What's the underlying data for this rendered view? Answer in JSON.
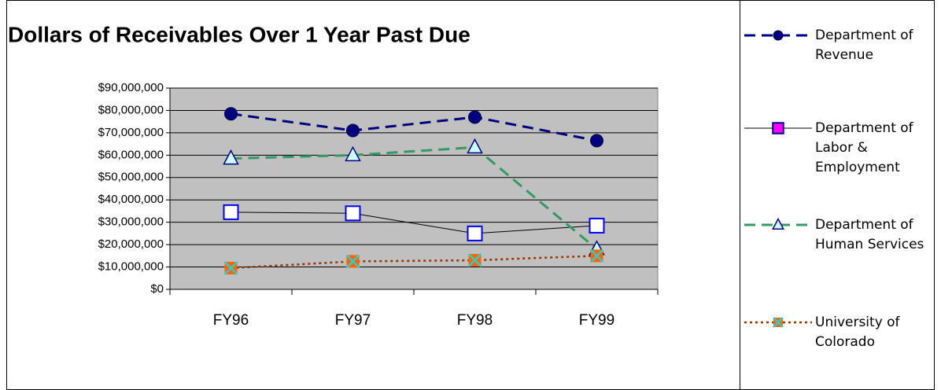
{
  "chart_data": {
    "type": "line",
    "title": "Dollars of Receivables Over 1 Year Past Due",
    "categories": [
      "FY96",
      "FY97",
      "FY98",
      "FY99"
    ],
    "series": [
      {
        "name": "Department of Revenue",
        "color": "#000080",
        "line_style": "dashed",
        "marker": "circle",
        "values": [
          78500000,
          71000000,
          77000000,
          66500000
        ]
      },
      {
        "name": "Department of Labor & Employment",
        "color": "#000000",
        "line_style": "solid",
        "marker": "square",
        "values": [
          34500000,
          34000000,
          25000000,
          28500000
        ]
      },
      {
        "name": "Department of Human Services",
        "color": "#339966",
        "line_style": "dashed",
        "marker": "triangle",
        "values": [
          58500000,
          60000000,
          63500000,
          18000000
        ]
      },
      {
        "name": "University of Colorado",
        "color": "#993300",
        "line_style": "dotted",
        "marker": "x",
        "values": [
          9500000,
          12500000,
          13000000,
          15000000
        ]
      }
    ],
    "ylim": [
      0,
      90000000
    ],
    "yticks": [
      {
        "value": 0,
        "label": "$0"
      },
      {
        "value": 10000000,
        "label": "$10,000,000"
      },
      {
        "value": 20000000,
        "label": "$20,000,000"
      },
      {
        "value": 30000000,
        "label": "$30,000,000"
      },
      {
        "value": 40000000,
        "label": "$40,000,000"
      },
      {
        "value": 50000000,
        "label": "$50,000,000"
      },
      {
        "value": 60000000,
        "label": "$60,000,000"
      },
      {
        "value": 70000000,
        "label": "$70,000,000"
      },
      {
        "value": 80000000,
        "label": "$80,000,000"
      },
      {
        "value": 90000000,
        "label": "$90,000,000"
      }
    ],
    "grid": true,
    "legend": "right"
  }
}
